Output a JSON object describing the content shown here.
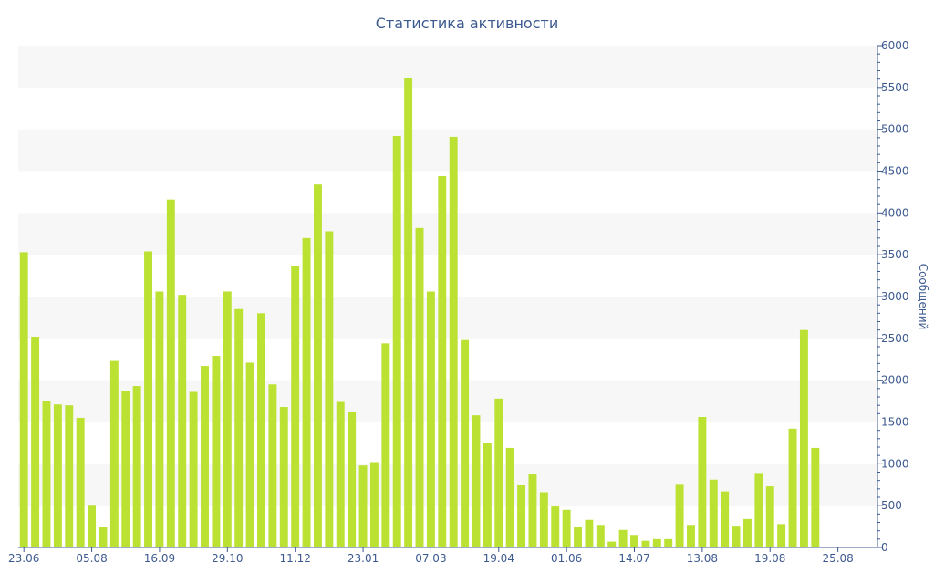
{
  "chart_data": {
    "type": "bar",
    "title": "Статистика активности",
    "xlabel": "",
    "ylabel": "Сообщений",
    "ylim": [
      0,
      6000
    ],
    "yticks": [
      0,
      500,
      1000,
      1500,
      2000,
      2500,
      3000,
      3500,
      4000,
      4500,
      5000,
      5500,
      6000
    ],
    "x_tick_labels": [
      {
        "label": "23.06",
        "index": 0
      },
      {
        "label": "05.08",
        "index": 6
      },
      {
        "label": "16.09",
        "index": 12
      },
      {
        "label": "29.10",
        "index": 18
      },
      {
        "label": "11.12",
        "index": 24
      },
      {
        "label": "23.01",
        "index": 30
      },
      {
        "label": "07.03",
        "index": 36
      },
      {
        "label": "19.04",
        "index": 42
      },
      {
        "label": "01.06",
        "index": 48
      },
      {
        "label": "14.07",
        "index": 54
      },
      {
        "label": "13.08",
        "index": 60
      },
      {
        "label": "19.08",
        "index": 66
      },
      {
        "label": "25.08",
        "index": 72
      }
    ],
    "values": [
      3530,
      2520,
      1750,
      1710,
      1700,
      1550,
      510,
      240,
      2230,
      1870,
      1930,
      3540,
      3060,
      4160,
      3020,
      1860,
      2170,
      2290,
      3060,
      2850,
      2210,
      2800,
      1950,
      1680,
      3370,
      3700,
      4340,
      3780,
      1740,
      1620,
      980,
      1020,
      2440,
      4920,
      5610,
      3820,
      3060,
      4440,
      4910,
      2480,
      1580,
      1250,
      1780,
      1190,
      750,
      880,
      660,
      490,
      450,
      250,
      330,
      270,
      70,
      210,
      150,
      80,
      100,
      100,
      760,
      270,
      1560,
      810,
      670,
      260,
      340,
      890,
      730,
      280,
      1420,
      2600,
      1190,
      10,
      10,
      10,
      10,
      10
    ],
    "bar_color": "#bbe132",
    "band_color": "#f7f7f7",
    "axis_color": "#3d5a8f",
    "grid": "alternating bands",
    "yaxis_position": "right"
  }
}
